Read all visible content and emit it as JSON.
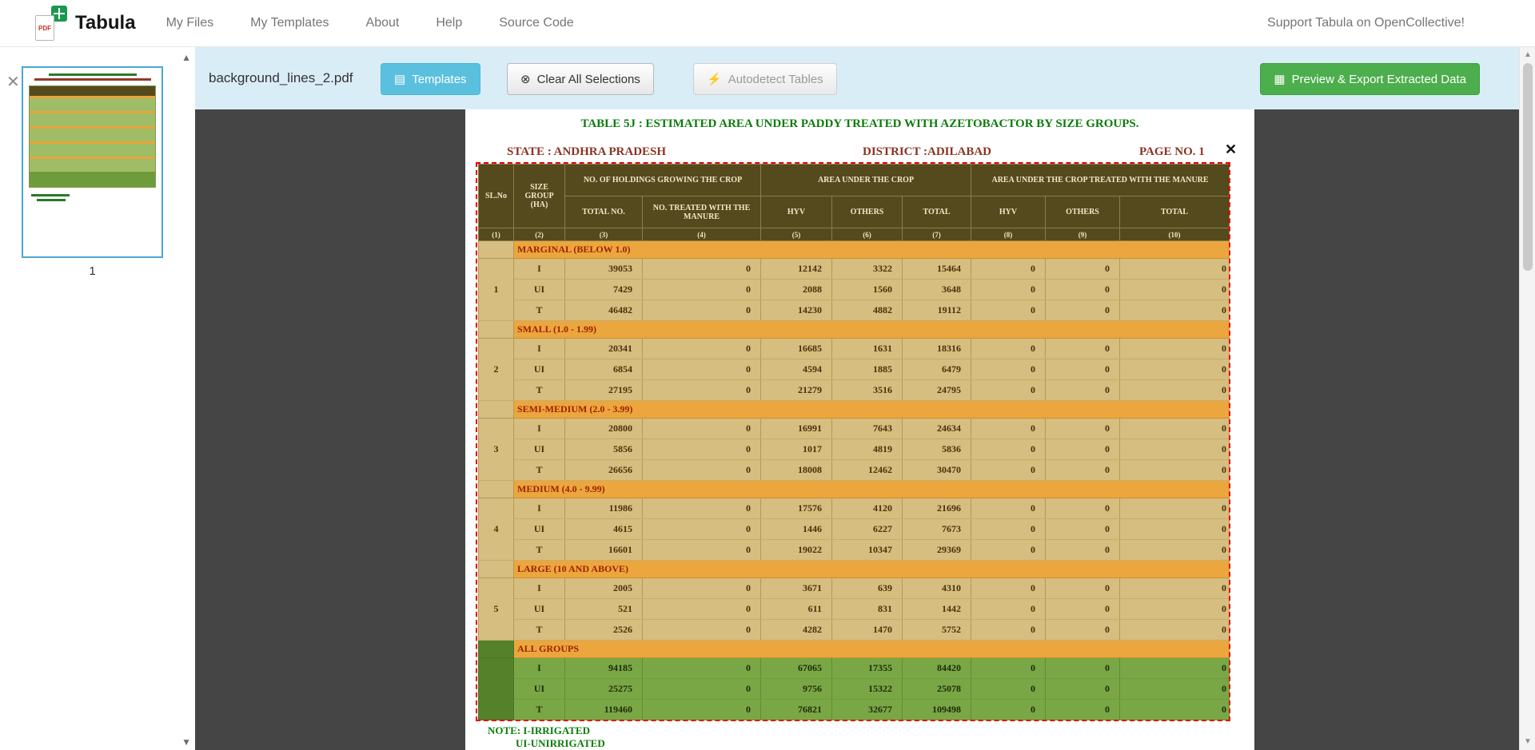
{
  "navbar": {
    "brand": "Tabula",
    "items": [
      "My Files",
      "My Templates",
      "About",
      "Help",
      "Source Code"
    ],
    "support": "Support Tabula on OpenCollective!"
  },
  "toolbar": {
    "filename": "background_lines_2.pdf",
    "templates": "Templates",
    "clear": "Clear All Selections",
    "autodetect": "Autodetect Tables",
    "export": "Preview & Export Extracted Data"
  },
  "icons": {
    "logo_pdf": "PDF",
    "templates": "▤",
    "clear": "⊗",
    "autodetect": "⚡",
    "export": "▦",
    "file_close": "✕",
    "selection_close": "✕",
    "scroll_up": "▲",
    "scroll_down": "▼"
  },
  "sidebar": {
    "page_number": "1"
  },
  "page": {
    "title": "TABLE 5J : ESTIMATED AREA UNDER PADDY  TREATED WITH AZETOBACTOR BY SIZE GROUPS.",
    "state": "STATE : ANDHRA PRADESH",
    "district": "DISTRICT :ADILABAD",
    "page_no": "PAGE NO. 1",
    "note1": "NOTE: I-IRRIGATED",
    "note2": "UI-UNIRRIGATED"
  },
  "table": {
    "header": {
      "sl_no": "SL.No",
      "size_group": "SIZE GROUP (HA)",
      "group1": "NO. OF HOLDINGS GROWING THE CROP",
      "group2": "AREA UNDER THE CROP",
      "group3": "AREA UNDER THE CROP TREATED WITH THE  MANURE",
      "sub": [
        "TOTAL NO.",
        "NO. TREATED WITH THE MANURE",
        "HYV",
        "OTHERS",
        "TOTAL",
        "HYV",
        "OTHERS",
        "TOTAL"
      ],
      "col_numbers": [
        "(1)",
        "(2)",
        "(3)",
        "(4)",
        "(5)",
        "(6)",
        "(7)",
        "(8)",
        "(9)",
        "(10)"
      ]
    },
    "groups": [
      {
        "sl_no": "1",
        "label": "MARGINAL (BELOW 1.0)",
        "highlight": false,
        "rows": [
          {
            "type": "I",
            "values": [
              "39053",
              "0",
              "12142",
              "3322",
              "15464",
              "0",
              "0",
              "0"
            ]
          },
          {
            "type": "UI",
            "values": [
              "7429",
              "0",
              "2088",
              "1560",
              "3648",
              "0",
              "0",
              "0"
            ]
          },
          {
            "type": "T",
            "values": [
              "46482",
              "0",
              "14230",
              "4882",
              "19112",
              "0",
              "0",
              "0"
            ]
          }
        ]
      },
      {
        "sl_no": "2",
        "label": "SMALL (1.0 - 1.99)",
        "highlight": false,
        "rows": [
          {
            "type": "I",
            "values": [
              "20341",
              "0",
              "16685",
              "1631",
              "18316",
              "0",
              "0",
              "0"
            ]
          },
          {
            "type": "UI",
            "values": [
              "6854",
              "0",
              "4594",
              "1885",
              "6479",
              "0",
              "0",
              "0"
            ]
          },
          {
            "type": "T",
            "values": [
              "27195",
              "0",
              "21279",
              "3516",
              "24795",
              "0",
              "0",
              "0"
            ]
          }
        ]
      },
      {
        "sl_no": "3",
        "label": "SEMI-MEDIUM (2.0 - 3.99)",
        "highlight": false,
        "rows": [
          {
            "type": "I",
            "values": [
              "20800",
              "0",
              "16991",
              "7643",
              "24634",
              "0",
              "0",
              "0"
            ]
          },
          {
            "type": "UI",
            "values": [
              "5856",
              "0",
              "1017",
              "4819",
              "5836",
              "0",
              "0",
              "0"
            ]
          },
          {
            "type": "T",
            "values": [
              "26656",
              "0",
              "18008",
              "12462",
              "30470",
              "0",
              "0",
              "0"
            ]
          }
        ]
      },
      {
        "sl_no": "4",
        "label": "MEDIUM (4.0 - 9.99)",
        "highlight": false,
        "rows": [
          {
            "type": "I",
            "values": [
              "11986",
              "0",
              "17576",
              "4120",
              "21696",
              "0",
              "0",
              "0"
            ]
          },
          {
            "type": "UI",
            "values": [
              "4615",
              "0",
              "1446",
              "6227",
              "7673",
              "0",
              "0",
              "0"
            ]
          },
          {
            "type": "T",
            "values": [
              "16601",
              "0",
              "19022",
              "10347",
              "29369",
              "0",
              "0",
              "0"
            ]
          }
        ]
      },
      {
        "sl_no": "5",
        "label": "LARGE (10 AND ABOVE)",
        "highlight": false,
        "rows": [
          {
            "type": "I",
            "values": [
              "2005",
              "0",
              "3671",
              "639",
              "4310",
              "0",
              "0",
              "0"
            ]
          },
          {
            "type": "UI",
            "values": [
              "521",
              "0",
              "611",
              "831",
              "1442",
              "0",
              "0",
              "0"
            ]
          },
          {
            "type": "T",
            "values": [
              "2526",
              "0",
              "4282",
              "1470",
              "5752",
              "0",
              "0",
              "0"
            ]
          }
        ]
      },
      {
        "sl_no": "",
        "label": "ALL GROUPS",
        "highlight": true,
        "rows": [
          {
            "type": "I",
            "values": [
              "94185",
              "0",
              "67065",
              "17355",
              "84420",
              "0",
              "0",
              "0"
            ]
          },
          {
            "type": "UI",
            "values": [
              "25275",
              "0",
              "9756",
              "15322",
              "25078",
              "0",
              "0",
              "0"
            ]
          },
          {
            "type": "T",
            "values": [
              "119460",
              "0",
              "76821",
              "32677",
              "109498",
              "0",
              "0",
              "0"
            ]
          }
        ]
      }
    ]
  },
  "colors": {
    "toolbar_bg": "#d9edf7",
    "templates_btn": "#5bc0de",
    "export_btn": "#4cae4c",
    "selection_red": "#e60000",
    "table_header_bg": "#554a1e",
    "table_body_bg": "#d6bd80",
    "section_row_bg": "#eca63e",
    "all_groups_bg": "#7aa746",
    "title_green": "#0b7c0b",
    "meta_maroon": "#8b3222",
    "canvas_bg": "#454545"
  }
}
